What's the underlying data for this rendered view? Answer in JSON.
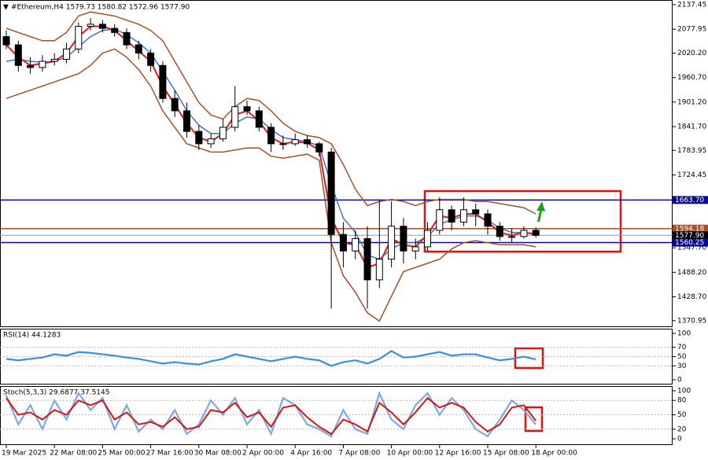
{
  "chart_data": [
    {
      "type": "candlestick",
      "title": "#Ethereum,H4 1579.73 1580.82 1572.96 1577.90",
      "categories": [
        "19 Mar 2025",
        null,
        null,
        null,
        "22 Mar 08:00",
        null,
        null,
        null,
        "25 Mar 00:00",
        null,
        null,
        null,
        "27 Mar 16:00",
        null,
        null,
        null,
        "30 Mar 08:00",
        null,
        null,
        null,
        "2 Apr 00:00",
        null,
        null,
        null,
        "4 Apr 16:00",
        null,
        null,
        null,
        "7 Apr 08:00",
        null,
        null,
        null,
        "10 Apr 00:00",
        null,
        null,
        null,
        "12 Apr 16:00",
        null,
        null,
        null,
        "15 Apr 08:00",
        null,
        null,
        null,
        "18 Apr 00:00"
      ],
      "open": [
        2060,
        2040,
        1990,
        1985,
        2000,
        2005,
        2030,
        2085,
        2090,
        2080,
        2070,
        2040,
        2020,
        1990,
        1910,
        1880,
        1830,
        1800,
        1812,
        1840,
        1890,
        1880,
        1840,
        1800,
        1800,
        1810,
        1800,
        1780,
        1580,
        1540,
        1570,
        1470,
        1520,
        1600,
        1540,
        1550,
        1590,
        1640,
        1610,
        1640,
        1630,
        1600,
        1575,
        1575,
        1590
      ],
      "high": [
        2075,
        2050,
        2010,
        2015,
        2020,
        2045,
        2095,
        2105,
        2100,
        2090,
        2080,
        2050,
        2030,
        2000,
        1930,
        1900,
        1845,
        1825,
        1860,
        1940,
        1905,
        1890,
        1850,
        1820,
        1825,
        1820,
        1805,
        1790,
        1610,
        1590,
        1600,
        1665,
        1660,
        1620,
        1570,
        1610,
        1670,
        1650,
        1670,
        1655,
        1640,
        1610,
        1595,
        1600,
        1597
      ],
      "low": [
        2030,
        1975,
        1970,
        1975,
        1990,
        1995,
        2020,
        2075,
        2070,
        2060,
        2030,
        2005,
        1975,
        1900,
        1865,
        1815,
        1785,
        1790,
        1805,
        1830,
        1870,
        1830,
        1780,
        1785,
        1795,
        1790,
        1770,
        1400,
        1500,
        1520,
        1400,
        1450,
        1500,
        1510,
        1520,
        1540,
        1580,
        1590,
        1600,
        1600,
        1580,
        1565,
        1560,
        1570,
        1572
      ],
      "close": [
        2040,
        1990,
        1985,
        2000,
        2005,
        2030,
        2085,
        2090,
        2080,
        2070,
        2040,
        2020,
        1990,
        1910,
        1880,
        1830,
        1800,
        1812,
        1840,
        1890,
        1880,
        1840,
        1800,
        1800,
        1810,
        1800,
        1780,
        1580,
        1540,
        1570,
        1470,
        1520,
        1600,
        1540,
        1550,
        1590,
        1640,
        1610,
        1640,
        1630,
        1600,
        1575,
        1575,
        1590,
        1577.9
      ],
      "up_color": "#ffffff",
      "down_color": "#000000",
      "series": [
        {
          "color": "#a0522d",
          "values": [
            2080,
            2070,
            2060,
            2050,
            2050,
            2070,
            2110,
            2120,
            2115,
            2110,
            2100,
            2090,
            2075,
            2050,
            2000,
            1950,
            1900,
            1870,
            1860,
            1890,
            1910,
            1905,
            1880,
            1850,
            1830,
            1820,
            1815,
            1800,
            1750,
            1690,
            1650,
            1660,
            1665,
            1660,
            1650,
            1660,
            1665,
            1665,
            1665,
            1660,
            1660,
            1655,
            1650,
            1645,
            1630
          ]
        },
        {
          "color": "#a0522d",
          "values": [
            1910,
            1920,
            1930,
            1940,
            1950,
            1960,
            1970,
            1990,
            2020,
            2030,
            2010,
            1980,
            1940,
            1880,
            1840,
            1800,
            1790,
            1780,
            1780,
            1785,
            1790,
            1790,
            1770,
            1765,
            1770,
            1775,
            1760,
            1560,
            1480,
            1440,
            1390,
            1370,
            1430,
            1490,
            1500,
            1510,
            1520,
            1545,
            1560,
            1565,
            1560,
            1555,
            1555,
            1555,
            1550
          ]
        },
        {
          "color": "#4472c4",
          "values": [
            2000,
            2005,
            2000,
            1998,
            2000,
            2010,
            2035,
            2060,
            2075,
            2078,
            2065,
            2045,
            2020,
            1975,
            1930,
            1880,
            1845,
            1825,
            1825,
            1850,
            1865,
            1860,
            1835,
            1815,
            1810,
            1805,
            1795,
            1700,
            1620,
            1585,
            1530,
            1520,
            1545,
            1560,
            1560,
            1575,
            1605,
            1615,
            1625,
            1625,
            1615,
            1595,
            1585,
            1585,
            1582
          ]
        },
        {
          "color": "#d62020",
          "values": [
            2040,
            2010,
            1990,
            1995,
            2000,
            2020,
            2060,
            2085,
            2085,
            2075,
            2050,
            2025,
            2000,
            1940,
            1895,
            1850,
            1815,
            1805,
            1825,
            1870,
            1880,
            1855,
            1815,
            1800,
            1805,
            1802,
            1785,
            1620,
            1560,
            1555,
            1500,
            1510,
            1570,
            1555,
            1550,
            1580,
            1625,
            1620,
            1630,
            1630,
            1610,
            1585,
            1578,
            1585,
            1580
          ]
        }
      ],
      "hlines": [
        {
          "value": 1663.7,
          "label": "1663.70",
          "color": "#0a0a90"
        },
        {
          "value": 1594.18,
          "label": "1594.18",
          "color": "#a0522d"
        },
        {
          "value": 1577.9,
          "label": "1577.90",
          "color": "#000000"
        },
        {
          "value": 1560.25,
          "label": "1560.25",
          "color": "#0a0a90"
        }
      ],
      "ylim": [
        1361,
        2145
      ],
      "yticks": [
        2137.45,
        2077.95,
        {
          "value": 2020.2,
          "label": "2020.20"
        },
        {
          "value": 1960.7,
          "label": "1960.70"
        },
        {
          "value": 1901.2,
          "label": "1901.20"
        },
        {
          "value": 1841.7,
          "label": "1841.70"
        },
        1783.95,
        1724.45,
        {
          "value": 1547.7,
          "label": "1547.70"
        },
        {
          "value": 1488.2,
          "label": "1488.20"
        },
        {
          "value": 1428.7,
          "label": "1428.70"
        },
        1370.95
      ]
    },
    {
      "type": "line",
      "title": "RSI(14) 44.1283",
      "series": [
        {
          "color": "#3a8ee0",
          "values": [
            45,
            42,
            45,
            48,
            55,
            52,
            60,
            58,
            55,
            52,
            48,
            45,
            40,
            35,
            38,
            35,
            33,
            40,
            45,
            55,
            50,
            45,
            40,
            45,
            50,
            45,
            42,
            30,
            38,
            42,
            35,
            45,
            62,
            48,
            50,
            55,
            60,
            52,
            55,
            55,
            48,
            42,
            45,
            50,
            44
          ]
        }
      ],
      "ylim": [
        0,
        100
      ],
      "yticks": [
        0,
        30,
        50,
        70,
        100
      ]
    },
    {
      "type": "line",
      "title": "Stoch(5,3,3) 29.6877 37.5145",
      "series": [
        {
          "color": "#7fa8e0",
          "values": [
            90,
            30,
            70,
            20,
            80,
            40,
            95,
            60,
            85,
            20,
            70,
            15,
            40,
            20,
            60,
            10,
            30,
            80,
            50,
            85,
            30,
            60,
            10,
            85,
            70,
            30,
            20,
            5,
            60,
            20,
            10,
            95,
            40,
            20,
            70,
            95,
            50,
            85,
            60,
            20,
            5,
            40,
            80,
            60,
            29.6877
          ]
        },
        {
          "color": "#d01818",
          "values": [
            85,
            50,
            55,
            40,
            60,
            50,
            80,
            70,
            80,
            40,
            55,
            30,
            35,
            25,
            45,
            20,
            25,
            60,
            55,
            75,
            45,
            55,
            25,
            65,
            70,
            45,
            25,
            10,
            40,
            30,
            15,
            75,
            55,
            30,
            55,
            85,
            65,
            75,
            65,
            35,
            15,
            30,
            65,
            70,
            37.5145
          ]
        }
      ],
      "ylim": [
        0,
        100
      ],
      "yticks": [
        0,
        20,
        50,
        80,
        100
      ]
    }
  ]
}
